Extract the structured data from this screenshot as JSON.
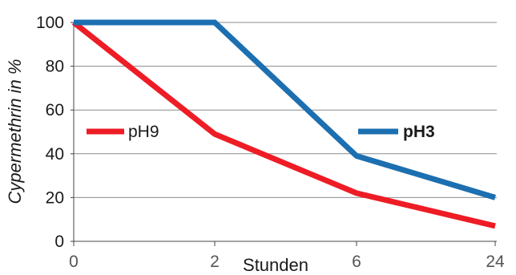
{
  "chart_data": {
    "type": "line",
    "title": "",
    "xlabel": "Stunden",
    "ylabel": "Cypermethrin in %",
    "x_ticks": [
      "0",
      "2",
      "6",
      "24"
    ],
    "y_ticks": [
      "0",
      "20",
      "40",
      "60",
      "80",
      "100"
    ],
    "ylim": [
      0,
      100
    ],
    "grid": "horizontal",
    "series": [
      {
        "name": "pH9",
        "color": "#ee1c25",
        "points": [
          {
            "x": "0",
            "y": 100
          },
          {
            "x": "2",
            "y": 49
          },
          {
            "x": "6",
            "y": 22
          },
          {
            "x": "24",
            "y": 7
          }
        ]
      },
      {
        "name": "pH3",
        "color": "#1c6fb0",
        "points": [
          {
            "x": "0",
            "y": 100
          },
          {
            "x": "2",
            "y": 100
          },
          {
            "x": "6",
            "y": 39
          },
          {
            "x": "24",
            "y": 20
          }
        ]
      }
    ],
    "legend": [
      {
        "label": "pH9",
        "bold": false,
        "placement": "left-middle"
      },
      {
        "label": "pH3",
        "bold": true,
        "placement": "right-middle"
      }
    ]
  }
}
